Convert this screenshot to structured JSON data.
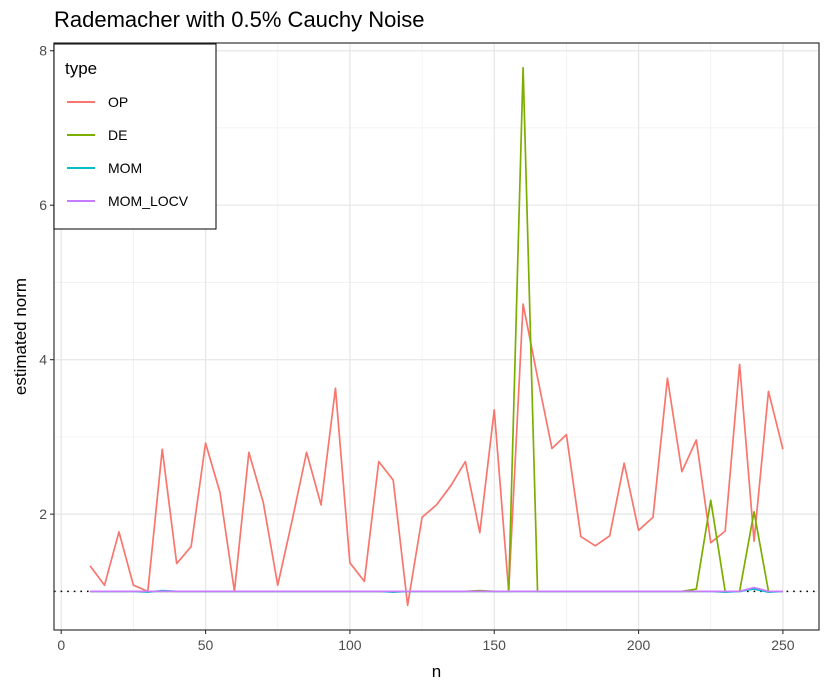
{
  "chart_data": {
    "type": "line",
    "title": "Rademacher with 0.5% Cauchy Noise",
    "xlabel": "n",
    "ylabel": "estimated norm",
    "xlim": [
      -2.5,
      262.5
    ],
    "ylim": [
      0.5,
      8.1
    ],
    "x_ticks": [
      0,
      50,
      100,
      150,
      200,
      250
    ],
    "y_ticks": [
      2,
      4,
      6,
      8
    ],
    "grid": true,
    "legend": {
      "title": "type",
      "position": "top-left"
    },
    "reference_line": {
      "y": 1,
      "style": "dotted"
    },
    "x": [
      10,
      15,
      20,
      25,
      30,
      35,
      40,
      45,
      50,
      55,
      60,
      65,
      70,
      75,
      80,
      85,
      90,
      95,
      100,
      105,
      110,
      115,
      120,
      125,
      130,
      135,
      140,
      145,
      150,
      155,
      160,
      165,
      170,
      175,
      180,
      185,
      190,
      195,
      200,
      205,
      210,
      215,
      220,
      225,
      230,
      235,
      240,
      245,
      250
    ],
    "series": [
      {
        "name": "OP",
        "color": "#F8766D",
        "values": [
          1.33,
          1.08,
          1.77,
          1.08,
          1.0,
          2.84,
          1.36,
          1.58,
          2.92,
          2.28,
          1.0,
          2.8,
          2.15,
          1.08,
          1.92,
          2.8,
          2.12,
          3.63,
          1.37,
          1.13,
          2.68,
          2.44,
          0.82,
          1.96,
          2.12,
          2.37,
          2.68,
          1.76,
          3.35,
          1.0,
          4.72,
          3.77,
          2.85,
          3.03,
          1.71,
          1.59,
          1.72,
          2.66,
          1.79,
          1.96,
          3.76,
          2.55,
          2.96,
          1.63,
          1.78,
          3.94,
          1.65,
          3.59,
          2.84
        ]
      },
      {
        "name": "DE",
        "color": "#7CAE00",
        "values": [
          1.0,
          1.0,
          1.0,
          1.0,
          1.0,
          1.0,
          1.0,
          1.0,
          1.0,
          1.0,
          1.0,
          1.0,
          1.0,
          1.0,
          1.0,
          1.0,
          1.0,
          1.0,
          1.0,
          1.0,
          1.0,
          1.0,
          1.0,
          1.0,
          1.0,
          1.0,
          1.0,
          1.01,
          1.0,
          1.0,
          7.78,
          1.0,
          1.0,
          1.0,
          1.0,
          1.0,
          1.0,
          1.0,
          1.0,
          1.0,
          1.0,
          1.0,
          1.03,
          2.18,
          1.0,
          1.0,
          2.03,
          1.0,
          1.0
        ]
      },
      {
        "name": "MOM",
        "color": "#00BFC4",
        "values": [
          1.0,
          1.0,
          1.0,
          1.0,
          0.99,
          1.01,
          1.0,
          1.0,
          1.0,
          1.0,
          1.0,
          1.0,
          1.0,
          1.0,
          1.0,
          1.0,
          1.0,
          1.0,
          1.0,
          1.0,
          1.0,
          0.99,
          1.0,
          1.0,
          1.0,
          1.0,
          1.0,
          1.0,
          1.0,
          1.0,
          1.0,
          1.0,
          1.0,
          1.0,
          1.0,
          1.0,
          1.0,
          1.0,
          1.0,
          1.0,
          1.0,
          1.0,
          1.0,
          1.0,
          0.99,
          1.0,
          1.03,
          0.99,
          1.0
        ]
      },
      {
        "name": "MOM_LOCV",
        "color": "#C77CFF",
        "values": [
          1.0,
          1.0,
          1.0,
          1.0,
          1.0,
          1.0,
          1.0,
          1.0,
          1.0,
          1.0,
          1.0,
          1.0,
          1.0,
          1.0,
          1.0,
          1.0,
          1.0,
          1.0,
          1.0,
          1.0,
          1.0,
          1.0,
          1.0,
          1.0,
          1.0,
          1.0,
          1.0,
          1.0,
          1.0,
          1.0,
          1.0,
          1.0,
          1.0,
          1.0,
          1.0,
          1.0,
          1.0,
          1.0,
          1.0,
          1.0,
          1.0,
          1.0,
          1.0,
          1.0,
          1.0,
          1.0,
          1.05,
          1.0,
          1.0
        ]
      }
    ]
  }
}
